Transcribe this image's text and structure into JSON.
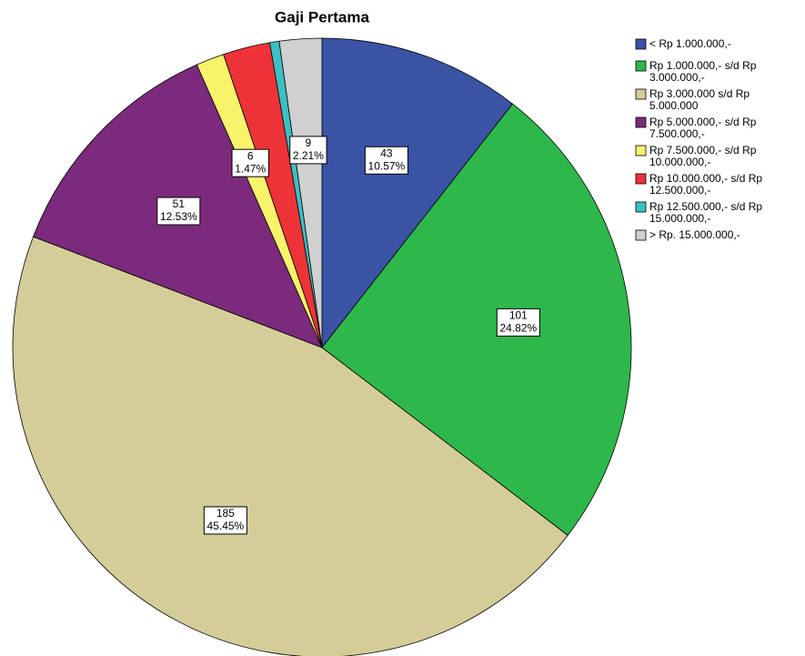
{
  "chart_data": {
    "type": "pie",
    "title": "Gaji Pertama",
    "categories": [
      "< Rp 1.000.000,-",
      "Rp 1.000.000,- s/d Rp 3.000.000,-",
      "Rp 3.000.000 s/d Rp 5.000.000",
      "Rp 5.000.000,- s/d Rp 7.500.000,-",
      "Rp 7.500.000,- s/d Rp 10.000.000,-",
      "Rp 10.000.000,- s/d Rp 12.500.000,-",
      "Rp 12.500.000,- s/d Rp 15.000.000,-",
      "> Rp. 15.000.000,-"
    ],
    "values": [
      43,
      101,
      185,
      51,
      6,
      10,
      2,
      9
    ],
    "percent_labels": [
      "10.57%",
      "24.82%",
      "45.45%",
      "12.53%",
      "1.47%",
      null,
      null,
      "2.21%"
    ],
    "colors": [
      "#3a53a4",
      "#2eb84b",
      "#d5cd98",
      "#7b2a7c",
      "#f7f36b",
      "#ee3338",
      "#3cc0c4",
      "#d0d0d0"
    ],
    "legend": "right"
  }
}
